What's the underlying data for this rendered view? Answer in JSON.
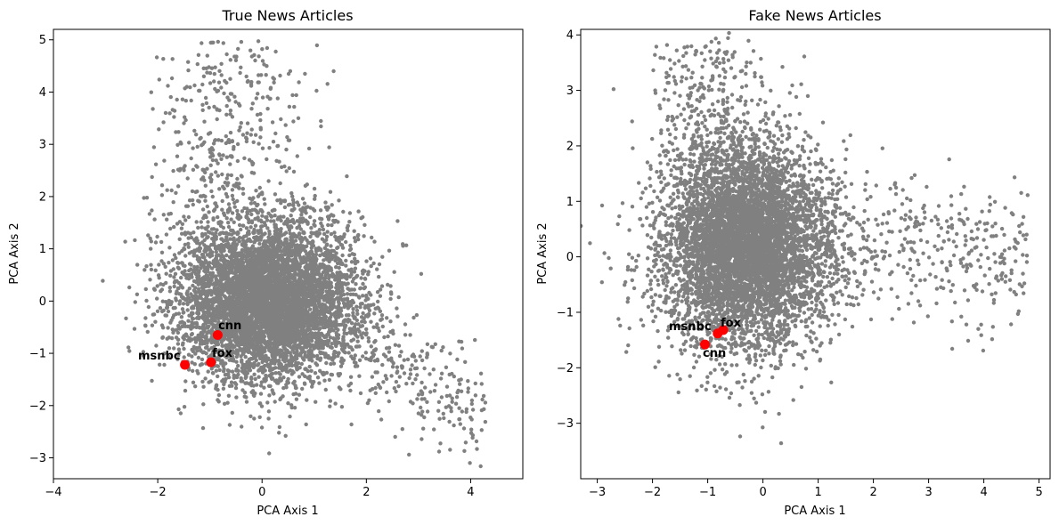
{
  "chart_data": [
    {
      "type": "scatter",
      "title": "True News Articles",
      "xlabel": "PCA Axis 1",
      "ylabel": "PCA Axis 2",
      "xlim": [
        -4,
        5
      ],
      "ylim": [
        -3.4,
        5.2
      ],
      "xticks": [
        -4,
        -2,
        0,
        2,
        4
      ],
      "yticks": [
        -3,
        -2,
        -1,
        0,
        1,
        2,
        3,
        4,
        5
      ],
      "point_color": "#808080",
      "highlight_color": "#ff0000",
      "cloud": {
        "center": [
          0.1,
          0.0
        ],
        "sd_x": 0.85,
        "sd_y": 0.75,
        "count": 6000,
        "upper_tail_count": 420,
        "right_tail_count": 260
      },
      "highlights": [
        {
          "label": "cnn",
          "x": -0.85,
          "y": -0.65
        },
        {
          "label": "fox",
          "x": -0.98,
          "y": -1.17
        },
        {
          "label": "msnbc",
          "x": -1.48,
          "y": -1.22
        }
      ]
    },
    {
      "type": "scatter",
      "title": "Fake News Articles",
      "xlabel": "PCA Axis 1",
      "ylabel": "PCA Axis 2",
      "xlim": [
        -3.3,
        5.2
      ],
      "ylim": [
        -4.0,
        4.1
      ],
      "xticks": [
        -3,
        -2,
        -1,
        0,
        1,
        2,
        3,
        4,
        5
      ],
      "yticks": [
        -3,
        -2,
        -1,
        0,
        1,
        2,
        3,
        4
      ],
      "point_color": "#808080",
      "highlight_color": "#ff0000",
      "cloud": {
        "center": [
          -0.3,
          0.2
        ],
        "sd_x": 0.75,
        "sd_y": 0.9,
        "count": 6000,
        "upper_tail_count": 300,
        "right_tail_count": 380
      },
      "highlights": [
        {
          "label": "cnn",
          "x": -1.05,
          "y": -1.58
        },
        {
          "label": "fox",
          "x": -0.72,
          "y": -1.32
        },
        {
          "label": "msnbc",
          "x": -0.82,
          "y": -1.38
        }
      ]
    }
  ]
}
